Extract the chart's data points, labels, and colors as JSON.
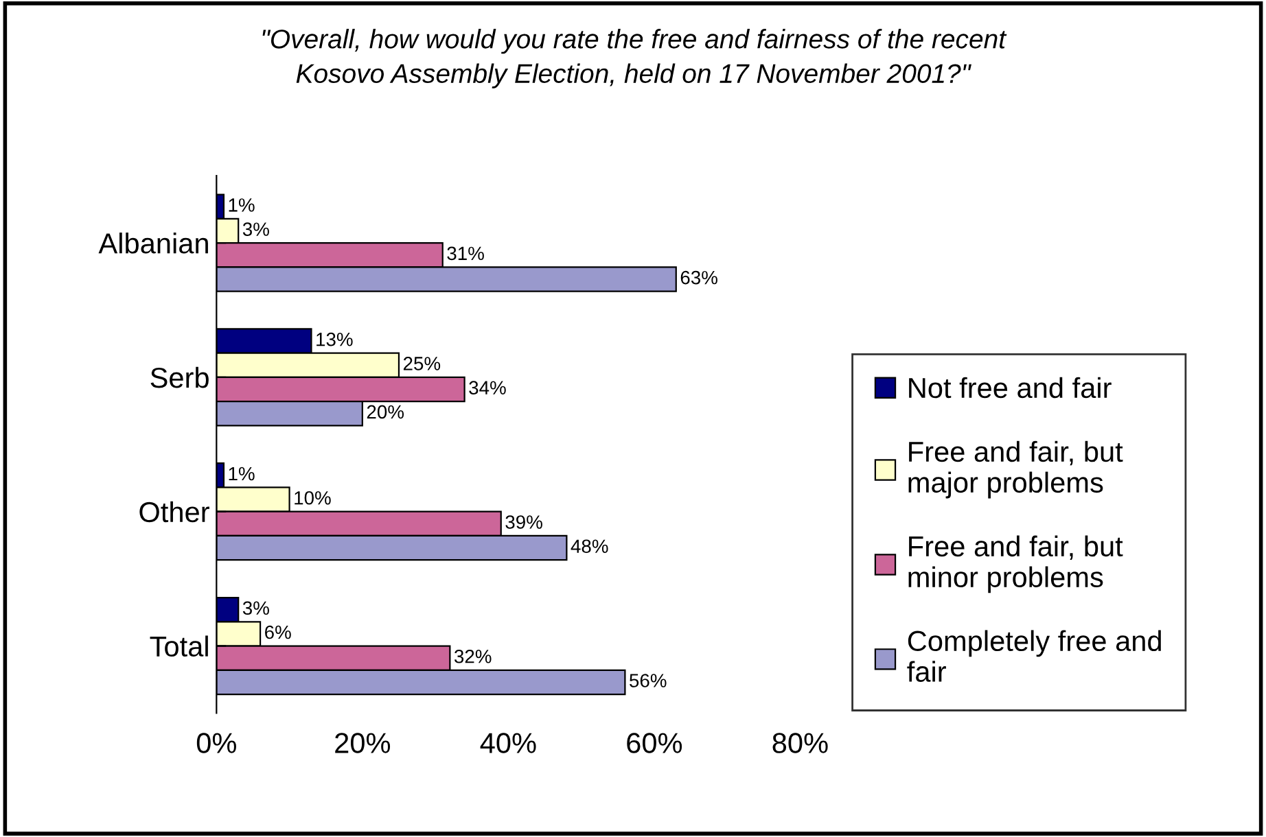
{
  "chart_data": {
    "type": "bar",
    "orientation": "horizontal",
    "title": "\"Overall, how would you rate the free and fairness of the recent\nKosovo Assembly Election, held on 17 November 2001?\"",
    "categories": [
      "Albanian",
      "Serb",
      "Other",
      "Total"
    ],
    "series": [
      {
        "name": "Not free and fair",
        "color": "#000080",
        "values": [
          1,
          13,
          1,
          3
        ],
        "value_labels": [
          "1%",
          "13%",
          "1%",
          "3%"
        ]
      },
      {
        "name": "Free and fair, but\nmajor problems",
        "color": "#ffffcc",
        "values": [
          3,
          25,
          10,
          6
        ],
        "value_labels": [
          "3%",
          "25%",
          "10%",
          "6%"
        ]
      },
      {
        "name": "Free and fair, but\nminor problems",
        "color": "#cc6699",
        "values": [
          31,
          34,
          39,
          32
        ],
        "value_labels": [
          "31%",
          "34%",
          "39%",
          "32%"
        ]
      },
      {
        "name": "Completely free and\nfair",
        "color": "#9999cc",
        "values": [
          63,
          20,
          48,
          56
        ],
        "value_labels": [
          "63%",
          "20%",
          "48%",
          "56%"
        ]
      }
    ],
    "xlim": [
      0,
      80
    ],
    "xticks": [
      {
        "value": 0,
        "label": "0%"
      },
      {
        "value": 20,
        "label": "20%"
      },
      {
        "value": 40,
        "label": "40%"
      },
      {
        "value": 60,
        "label": "60%"
      },
      {
        "value": 80,
        "label": "80%"
      }
    ],
    "grid": false,
    "legend": "right"
  }
}
